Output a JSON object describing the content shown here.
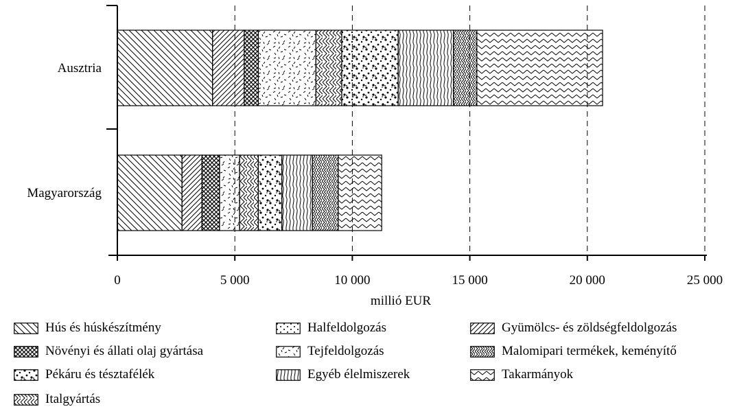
{
  "chart_data": {
    "type": "bar",
    "orientation": "horizontal",
    "stacked": true,
    "categories": [
      "Ausztria",
      "Magyarország"
    ],
    "xlabel": "millió EUR",
    "xlim": [
      0,
      25000
    ],
    "xticks": [
      0,
      5000,
      10000,
      15000,
      20000,
      25000
    ],
    "xtick_labels": [
      "0",
      "5 000",
      "10 000",
      "15 000",
      "20 000",
      "25 000"
    ],
    "grid": "vertical dashed",
    "legend_position": "bottom",
    "series": [
      {
        "name": "Hús és húskészítmény",
        "pattern": "diag-back",
        "values": [
          4050,
          2750
        ]
      },
      {
        "name": "Gyümölcs- és zöldségfeldolgozás",
        "pattern": "diag-forward",
        "values": [
          1350,
          850
        ]
      },
      {
        "name": "Növényi és állati olaj gyártása",
        "pattern": "crosshatch",
        "values": [
          600,
          750
        ]
      },
      {
        "name": "Tejfeldolgozás",
        "pattern": "dash-confetti",
        "values": [
          2450,
          850
        ]
      },
      {
        "name": "Italgyártás",
        "pattern": "zigzag",
        "values": [
          1100,
          800
        ]
      },
      {
        "name": "Pékáru és tésztafélék",
        "pattern": "dots-dense",
        "values": [
          2400,
          1000
        ]
      },
      {
        "name": "Egyéb élelmiszerek",
        "pattern": "wavy-vertical",
        "values": [
          2350,
          1300
        ]
      },
      {
        "name": "Malomipari termékek, keményítő",
        "pattern": "zigzag-fine",
        "values": [
          1000,
          1100
        ]
      },
      {
        "name": "Takarmányok",
        "pattern": "zigzag-horizontal",
        "values": [
          5350,
          1850
        ]
      },
      {
        "name": "Halfeldolgozás",
        "pattern": "dots-sparse",
        "values": [
          0,
          0
        ]
      }
    ]
  },
  "legend": [
    {
      "label": "Hús és húskészítmény",
      "pattern": "diag-back"
    },
    {
      "label": "Halfeldolgozás",
      "pattern": "dots-sparse"
    },
    {
      "label": "Gyümölcs- és zöldségfeldolgozás",
      "pattern": "diag-forward"
    },
    {
      "label": "Növényi és állati olaj gyártása",
      "pattern": "crosshatch"
    },
    {
      "label": "Tejfeldolgozás",
      "pattern": "dash-confetti"
    },
    {
      "label": "Malomipari termékek, keményítő",
      "pattern": "zigzag-fine"
    },
    {
      "label": "Pékáru és tésztafélék",
      "pattern": "dots-dense"
    },
    {
      "label": "Egyéb élelmiszerek",
      "pattern": "wavy-vertical"
    },
    {
      "label": "Takarmányok",
      "pattern": "zigzag-horizontal"
    },
    {
      "label": "Italgyártás",
      "pattern": "zigzag"
    }
  ]
}
